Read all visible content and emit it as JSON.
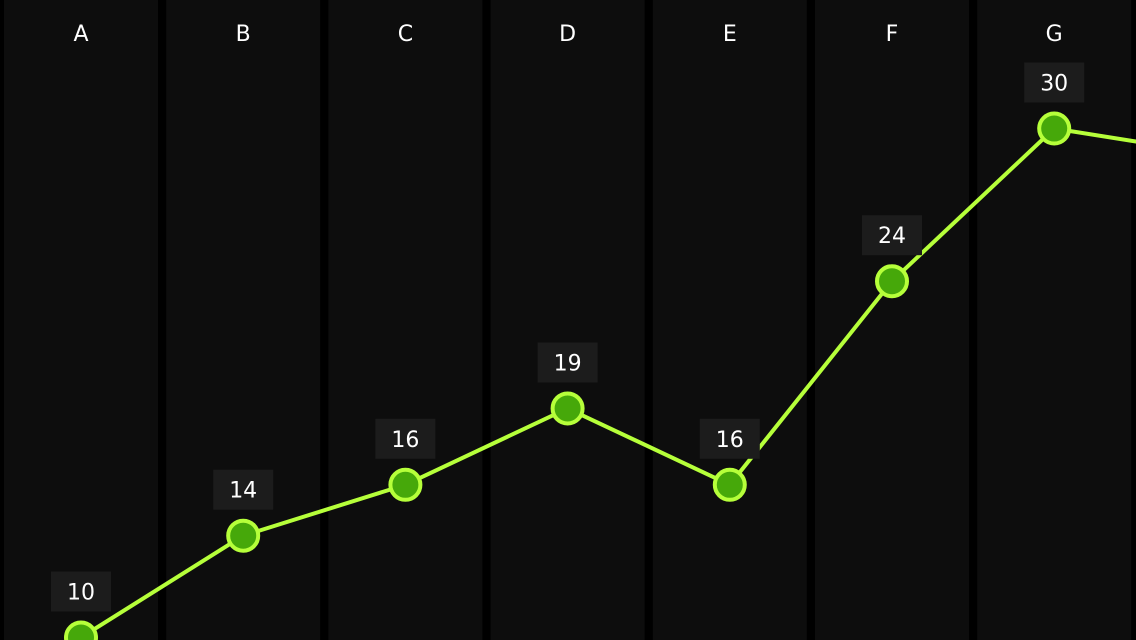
{
  "chart_data": {
    "type": "line",
    "categories": [
      "A",
      "B",
      "C",
      "D",
      "E",
      "F",
      "G"
    ],
    "series": [
      {
        "values": [
          10,
          14,
          16,
          19,
          16,
          24,
          30
        ]
      }
    ],
    "title": "",
    "xlabel": "",
    "ylabel": "",
    "grid": false,
    "legend": "none",
    "colors": {
      "background": "#000000",
      "column": "#0d0d0d",
      "line": "#b6ff3a",
      "marker_fill": "#46a80a",
      "marker_stroke": "#b6ff3a",
      "label_box": "#1c1c1c",
      "text": "#ffffff"
    }
  }
}
